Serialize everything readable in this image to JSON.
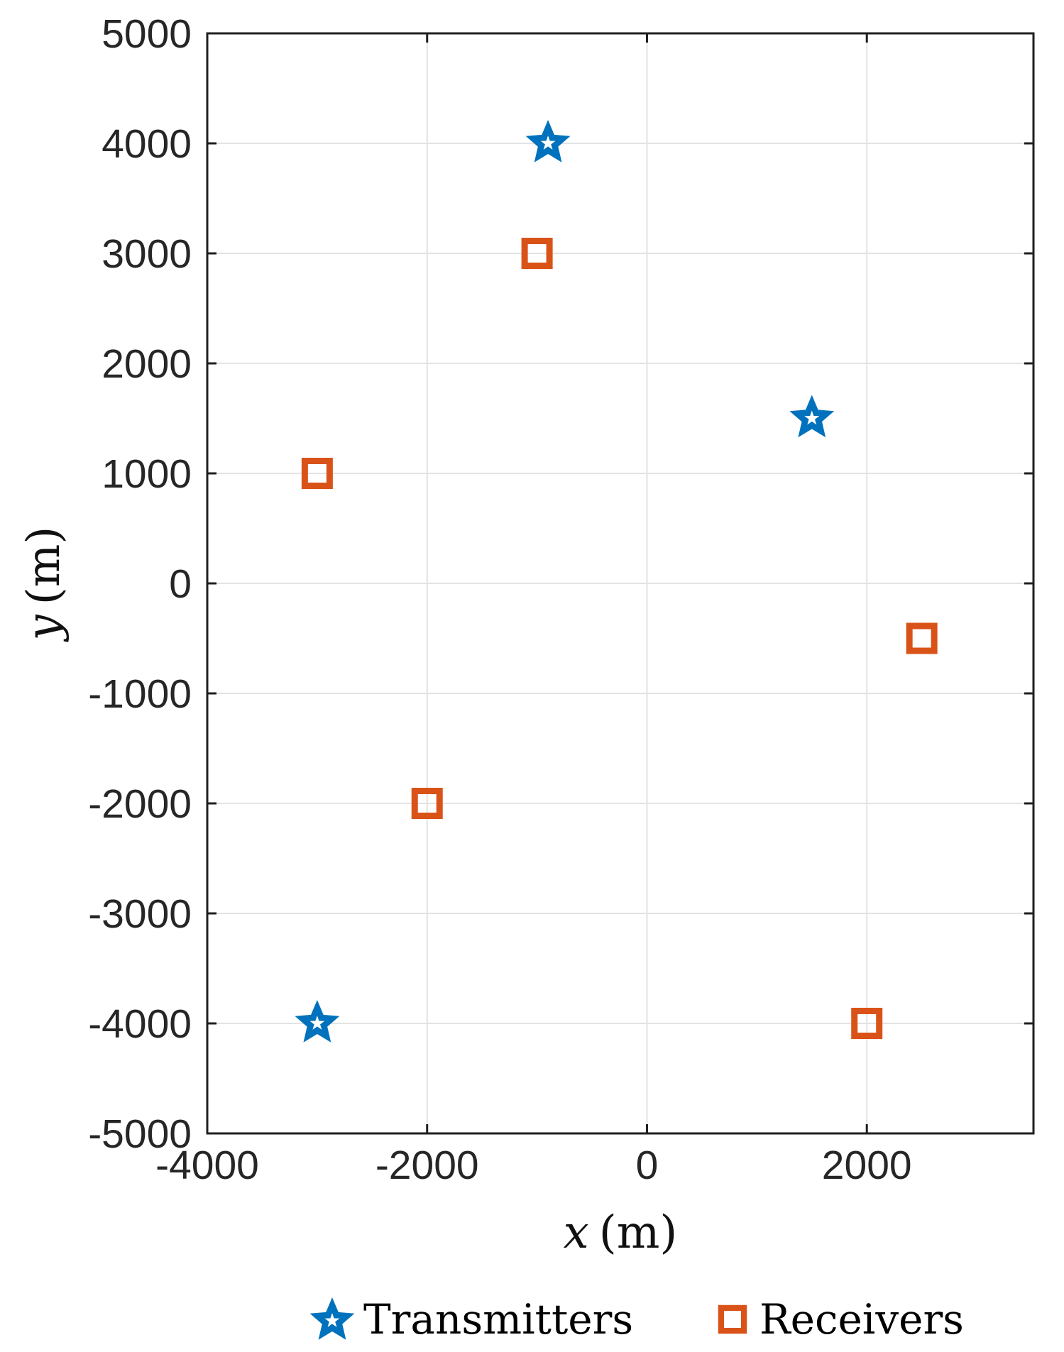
{
  "figure": {
    "background": "#ffffff",
    "axis_color": "#1f1f1f",
    "grid_color": "#e3e3e3",
    "tick_label_color": "#262626"
  },
  "chart_data": {
    "type": "scatter",
    "title": "",
    "xlabel_var": "x",
    "xlabel_unit": "(m)",
    "ylabel_var": "y",
    "ylabel_unit": "(m)",
    "xlim": [
      -4000,
      3516
    ],
    "ylim": [
      -5000,
      5000
    ],
    "xticks": [
      -4000,
      -2000,
      0,
      2000
    ],
    "yticks": [
      -5000,
      -4000,
      -3000,
      -2000,
      -1000,
      0,
      1000,
      2000,
      3000,
      4000,
      5000
    ],
    "grid": true,
    "legend_position": "below-plot",
    "series": [
      {
        "name": "Transmitters",
        "marker": "pentagram-star",
        "color": "#0072BD",
        "points": [
          [
            -900,
            4000
          ],
          [
            1500,
            1500
          ],
          [
            -3000,
            -4000
          ]
        ]
      },
      {
        "name": "Receivers",
        "marker": "open-square",
        "color": "#D95319",
        "points": [
          [
            -1000,
            3000
          ],
          [
            -3000,
            1000
          ],
          [
            2500,
            -500
          ],
          [
            -2000,
            -2000
          ],
          [
            2000,
            -4000
          ]
        ]
      }
    ]
  }
}
